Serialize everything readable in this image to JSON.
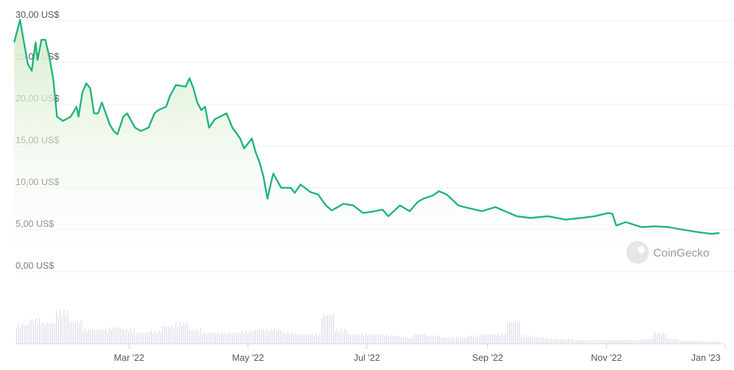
{
  "chart_data": {
    "type": "area",
    "title": "",
    "xlabel": "",
    "ylabel": "",
    "ylim": [
      0,
      30
    ],
    "xlim": [
      "2022-01-01",
      "2023-01-01"
    ],
    "grid": true,
    "y_ticks": [
      {
        "value": 0,
        "label": "0,00 US$"
      },
      {
        "value": 5,
        "label": "5,00 US$"
      },
      {
        "value": 10,
        "label": "10,00 US$"
      },
      {
        "value": 15,
        "label": "15,00 US$"
      },
      {
        "value": 20,
        "label": "20,00 US$"
      },
      {
        "value": 25,
        "label": "25,00 US$"
      },
      {
        "value": 30,
        "label": "30,00 US$"
      }
    ],
    "x_ticks": [
      {
        "date": "2022-03-01",
        "label": "Mar '22"
      },
      {
        "date": "2022-05-01",
        "label": "May '22"
      },
      {
        "date": "2022-07-01",
        "label": "Jul '22"
      },
      {
        "date": "2022-09-01",
        "label": "Sep '22"
      },
      {
        "date": "2022-11-01",
        "label": "Nov '22"
      },
      {
        "date": "2023-01-01",
        "label": "Jan '23"
      }
    ],
    "line_color": "#1fb37c",
    "fill_color": "#d9efd2",
    "price": [
      [
        "2022-01-01",
        27.4
      ],
      [
        "2022-01-04",
        30.1
      ],
      [
        "2022-01-06",
        27.4
      ],
      [
        "2022-01-08",
        24.8
      ],
      [
        "2022-01-10",
        24.0
      ],
      [
        "2022-01-12",
        27.4
      ],
      [
        "2022-01-13",
        25.3
      ],
      [
        "2022-01-15",
        27.7
      ],
      [
        "2022-01-17",
        27.7
      ],
      [
        "2022-01-19",
        25.7
      ],
      [
        "2022-01-21",
        23.1
      ],
      [
        "2022-01-23",
        18.5
      ],
      [
        "2022-01-26",
        18.0
      ],
      [
        "2022-01-30",
        18.5
      ],
      [
        "2022-02-02",
        19.7
      ],
      [
        "2022-02-03",
        18.5
      ],
      [
        "2022-02-05",
        21.4
      ],
      [
        "2022-02-07",
        22.5
      ],
      [
        "2022-02-09",
        21.9
      ],
      [
        "2022-02-11",
        18.9
      ],
      [
        "2022-02-13",
        18.9
      ],
      [
        "2022-02-15",
        20.2
      ],
      [
        "2022-02-17",
        18.9
      ],
      [
        "2022-02-19",
        17.6
      ],
      [
        "2022-02-21",
        16.8
      ],
      [
        "2022-02-23",
        16.4
      ],
      [
        "2022-02-26",
        18.5
      ],
      [
        "2022-02-28",
        18.9
      ],
      [
        "2022-03-04",
        17.2
      ],
      [
        "2022-03-07",
        16.8
      ],
      [
        "2022-03-11",
        17.2
      ],
      [
        "2022-03-14",
        18.9
      ],
      [
        "2022-03-16",
        19.3
      ],
      [
        "2022-03-20",
        19.7
      ],
      [
        "2022-03-22",
        21.0
      ],
      [
        "2022-03-25",
        22.3
      ],
      [
        "2022-03-30",
        22.1
      ],
      [
        "2022-04-01",
        23.1
      ],
      [
        "2022-04-03",
        21.9
      ],
      [
        "2022-04-05",
        20.2
      ],
      [
        "2022-04-07",
        19.3
      ],
      [
        "2022-04-09",
        19.7
      ],
      [
        "2022-04-11",
        17.2
      ],
      [
        "2022-04-14",
        18.2
      ],
      [
        "2022-04-20",
        18.9
      ],
      [
        "2022-04-23",
        17.2
      ],
      [
        "2022-04-27",
        15.9
      ],
      [
        "2022-04-29",
        14.7
      ],
      [
        "2022-05-03",
        15.9
      ],
      [
        "2022-05-05",
        14.2
      ],
      [
        "2022-05-07",
        13.0
      ],
      [
        "2022-05-09",
        11.3
      ],
      [
        "2022-05-11",
        8.7
      ],
      [
        "2022-05-13",
        10.8
      ],
      [
        "2022-05-14",
        11.7
      ],
      [
        "2022-05-18",
        10.0
      ],
      [
        "2022-05-23",
        10.0
      ],
      [
        "2022-05-25",
        9.4
      ],
      [
        "2022-05-28",
        10.4
      ],
      [
        "2022-06-02",
        9.5
      ],
      [
        "2022-06-06",
        9.2
      ],
      [
        "2022-06-10",
        7.9
      ],
      [
        "2022-06-13",
        7.3
      ],
      [
        "2022-06-19",
        8.1
      ],
      [
        "2022-06-24",
        7.9
      ],
      [
        "2022-06-29",
        7.0
      ],
      [
        "2022-07-05",
        7.2
      ],
      [
        "2022-07-09",
        7.4
      ],
      [
        "2022-07-12",
        6.6
      ],
      [
        "2022-07-18",
        7.9
      ],
      [
        "2022-07-23",
        7.2
      ],
      [
        "2022-07-27",
        8.3
      ],
      [
        "2022-07-30",
        8.7
      ],
      [
        "2022-08-04",
        9.1
      ],
      [
        "2022-08-07",
        9.6
      ],
      [
        "2022-08-11",
        9.2
      ],
      [
        "2022-08-17",
        7.9
      ],
      [
        "2022-08-20",
        7.7
      ],
      [
        "2022-08-29",
        7.2
      ],
      [
        "2022-09-05",
        7.7
      ],
      [
        "2022-09-12",
        7.0
      ],
      [
        "2022-09-16",
        6.6
      ],
      [
        "2022-09-23",
        6.4
      ],
      [
        "2022-10-02",
        6.6
      ],
      [
        "2022-10-11",
        6.2
      ],
      [
        "2022-10-19",
        6.4
      ],
      [
        "2022-10-26",
        6.6
      ],
      [
        "2022-11-02",
        7.0
      ],
      [
        "2022-11-04",
        6.9
      ],
      [
        "2022-11-06",
        5.5
      ],
      [
        "2022-11-11",
        5.9
      ],
      [
        "2022-11-19",
        5.3
      ],
      [
        "2022-11-26",
        5.4
      ],
      [
        "2022-12-03",
        5.3
      ],
      [
        "2022-12-10",
        5.0
      ],
      [
        "2022-12-18",
        4.7
      ],
      [
        "2022-12-25",
        4.5
      ],
      [
        "2022-12-29",
        4.6
      ]
    ],
    "volume_relative_weekly": [
      0.6,
      0.75,
      0.65,
      1.0,
      0.7,
      0.45,
      0.45,
      0.5,
      0.45,
      0.35,
      0.4,
      0.55,
      0.65,
      0.45,
      0.35,
      0.35,
      0.35,
      0.4,
      0.45,
      0.45,
      0.35,
      0.3,
      0.3,
      0.9,
      0.45,
      0.3,
      0.3,
      0.3,
      0.25,
      0.2,
      0.3,
      0.25,
      0.2,
      0.2,
      0.25,
      0.3,
      0.3,
      0.7,
      0.25,
      0.2,
      0.15,
      0.15,
      0.12,
      0.12,
      0.12,
      0.12,
      0.12,
      0.15,
      0.35,
      0.15,
      0.1,
      0.1,
      0.08
    ]
  },
  "watermark": "CoinGecko"
}
